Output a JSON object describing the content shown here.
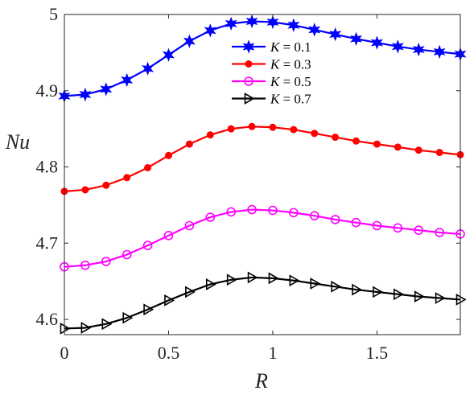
{
  "chart_data": {
    "type": "line",
    "xlabel": "R",
    "ylabel": "Nu",
    "xlim": [
      0,
      1.9
    ],
    "ylim": [
      4.58,
      5.0
    ],
    "x_ticks": [
      0,
      0.5,
      1,
      1.5
    ],
    "x_tick_labels": [
      "0",
      "0.5",
      "1",
      "1.5"
    ],
    "y_ticks": [
      4.6,
      4.7,
      4.8,
      4.9,
      5.0
    ],
    "y_tick_labels": [
      "4.6",
      "4.7",
      "4.8",
      "4.9",
      "5"
    ],
    "grid": false,
    "legend_position": "top-center",
    "x": [
      0,
      0.1,
      0.2,
      0.3,
      0.4,
      0.5,
      0.6,
      0.7,
      0.8,
      0.9,
      1.0,
      1.1,
      1.2,
      1.3,
      1.4,
      1.5,
      1.6,
      1.7,
      1.8,
      1.9
    ],
    "series": [
      {
        "name_prefix": "K",
        "name_value": " = 0.1",
        "color": "#0000ff",
        "marker": "hexagram",
        "values": [
          4.893,
          4.895,
          4.902,
          4.914,
          4.929,
          4.947,
          4.965,
          4.979,
          4.988,
          4.991,
          4.99,
          4.986,
          4.98,
          4.974,
          4.968,
          4.963,
          4.958,
          4.954,
          4.951,
          4.948
        ]
      },
      {
        "name_prefix": "K",
        "name_value": " = 0.3",
        "color": "#ff0000",
        "marker": "dot",
        "values": [
          4.768,
          4.77,
          4.776,
          4.786,
          4.799,
          4.815,
          4.83,
          4.842,
          4.85,
          4.853,
          4.852,
          4.849,
          4.844,
          4.839,
          4.834,
          4.83,
          4.826,
          4.822,
          4.819,
          4.816
        ]
      },
      {
        "name_prefix": "K",
        "name_value": " = 0.5",
        "color": "#ff00ff",
        "marker": "circle",
        "values": [
          4.669,
          4.671,
          4.676,
          4.685,
          4.697,
          4.71,
          4.723,
          4.734,
          4.741,
          4.744,
          4.743,
          4.74,
          4.736,
          4.731,
          4.727,
          4.723,
          4.72,
          4.717,
          4.714,
          4.712
        ]
      },
      {
        "name_prefix": "K",
        "name_value": " = 0.7",
        "color": "#000000",
        "marker": "triangle-right",
        "values": [
          4.588,
          4.589,
          4.594,
          4.602,
          4.613,
          4.625,
          4.636,
          4.646,
          4.652,
          4.655,
          4.654,
          4.651,
          4.647,
          4.643,
          4.639,
          4.636,
          4.633,
          4.63,
          4.628,
          4.626
        ]
      }
    ]
  }
}
